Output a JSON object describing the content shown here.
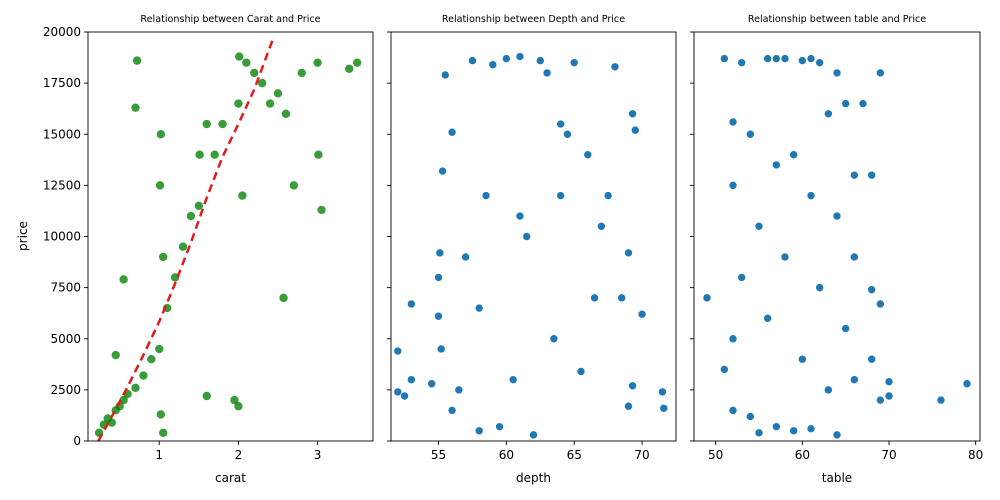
{
  "figure": {
    "ylabel": "price"
  },
  "chart_data": [
    {
      "type": "scatter",
      "title": "Relationship between Carat and Price",
      "xlabel": "carat",
      "ylabel": "price",
      "xlim": [
        0.1,
        3.7
      ],
      "ylim": [
        0,
        20000
      ],
      "xticks": [
        1,
        2,
        3
      ],
      "yticks": [
        0,
        2500,
        5000,
        7500,
        10000,
        12500,
        15000,
        17500,
        20000
      ],
      "point_color": "#008000",
      "fit_line": {
        "color": "#e31a1c",
        "style": "dashed",
        "x": [
          0.23,
          0.4,
          0.6,
          0.8,
          1.0,
          1.2,
          1.4,
          1.6,
          1.8,
          2.0,
          2.2,
          2.43
        ],
        "y": [
          0,
          1200,
          2650,
          4200,
          5850,
          7700,
          9700,
          11900,
          13900,
          15500,
          17200,
          19600
        ]
      },
      "series": [
        {
          "x": [
            0.24,
            0.3,
            0.35,
            0.4,
            0.45,
            0.5,
            0.55,
            0.6,
            0.7,
            0.72,
            0.8,
            0.9,
            1.0,
            1.01,
            1.05,
            1.1,
            1.2,
            1.3,
            1.4,
            1.5,
            1.51,
            1.6,
            1.7,
            1.8,
            2.0,
            2.01,
            2.05,
            2.1,
            2.2,
            2.3,
            2.4,
            2.5,
            2.6,
            2.7,
            2.8,
            3.0,
            3.01,
            3.05,
            3.4,
            3.5,
            0.7,
            1.02,
            1.6,
            2.57,
            0.45,
            0.55,
            1.05,
            1.95,
            2.0,
            1.02
          ],
          "y": [
            400,
            800,
            1100,
            900,
            1500,
            1700,
            2000,
            2300,
            2600,
            18600,
            3200,
            4000,
            4500,
            12500,
            9000,
            6500,
            8000,
            9500,
            11000,
            11500,
            14000,
            15500,
            14000,
            15500,
            16500,
            18800,
            12000,
            18500,
            18000,
            17500,
            16500,
            17000,
            16000,
            12500,
            18000,
            18500,
            14000,
            11300,
            18200,
            18500,
            16300,
            1300,
            2200,
            7000,
            4200,
            7900,
            400,
            2000,
            1700,
            15000
          ]
        }
      ]
    },
    {
      "type": "scatter",
      "title": "Relationship between Depth and Price",
      "xlabel": "depth",
      "ylabel": "",
      "xlim": [
        51.5,
        72.5
      ],
      "ylim": [
        0,
        20000
      ],
      "xticks": [
        55,
        60,
        65,
        70
      ],
      "point_color": "#1f77b4",
      "series": [
        {
          "x": [
            52.0,
            52.0,
            52.5,
            53.0,
            53.0,
            54.5,
            55.0,
            55.0,
            55.1,
            55.3,
            55.5,
            56.0,
            56.5,
            57.0,
            57.5,
            58.0,
            58.5,
            59.0,
            59.5,
            60.0,
            60.5,
            61.0,
            61.5,
            62.0,
            62.5,
            63.0,
            63.5,
            64.0,
            64.5,
            65.0,
            65.5,
            66.0,
            66.5,
            67.0,
            67.5,
            68.0,
            68.5,
            69.0,
            69.5,
            70.0,
            71.5,
            71.6,
            69.3,
            69.3,
            69.0,
            56.0,
            55.2,
            58.0,
            61.0,
            64.0
          ],
          "y": [
            4400,
            2400,
            2200,
            6700,
            3000,
            2800,
            6100,
            8000,
            9200,
            13200,
            17900,
            15100,
            2500,
            9000,
            18600,
            500,
            12000,
            18400,
            700,
            18700,
            3000,
            18800,
            10000,
            300,
            18600,
            18000,
            5000,
            12000,
            15000,
            18500,
            3400,
            14000,
            7000,
            10500,
            12000,
            18300,
            7000,
            9200,
            15200,
            6200,
            2400,
            1600,
            16000,
            2700,
            1700,
            1500,
            4500,
            6500,
            11000,
            15500
          ]
        }
      ]
    },
    {
      "type": "scatter",
      "title": "Relationship between table and Price",
      "xlabel": "table",
      "ylabel": "",
      "xlim": [
        47.5,
        80.5
      ],
      "ylim": [
        0,
        20000
      ],
      "xticks": [
        50,
        60,
        70,
        80
      ],
      "point_color": "#1f77b4",
      "series": [
        {
          "x": [
            49.0,
            51.0,
            51.0,
            52.0,
            52.0,
            52.0,
            53.0,
            53.0,
            54.0,
            54.0,
            55.0,
            55.0,
            56.0,
            56.0,
            57.0,
            57.0,
            58.0,
            58.0,
            59.0,
            59.0,
            60.0,
            60.0,
            61.0,
            61.0,
            62.0,
            62.0,
            63.0,
            63.0,
            64.0,
            64.0,
            65.0,
            65.0,
            66.0,
            66.0,
            67.0,
            68.0,
            68.0,
            69.0,
            69.0,
            70.0,
            76.0,
            79.0,
            52.0,
            57.0,
            61.0,
            64.0,
            66.0,
            68.0,
            69.0,
            70.0
          ],
          "y": [
            7000,
            18700,
            3500,
            12500,
            5000,
            1500,
            18500,
            8000,
            15000,
            1200,
            10500,
            400,
            18700,
            6000,
            13500,
            700,
            18700,
            9000,
            14000,
            500,
            18600,
            4000,
            12000,
            600,
            18500,
            7500,
            16000,
            2500,
            11000,
            300,
            16500,
            5500,
            13000,
            3000,
            16500,
            13000,
            7400,
            6700,
            18000,
            2200,
            2000,
            2800,
            15600,
            18700,
            18700,
            18000,
            9000,
            4000,
            2000,
            2900
          ]
        }
      ]
    }
  ]
}
